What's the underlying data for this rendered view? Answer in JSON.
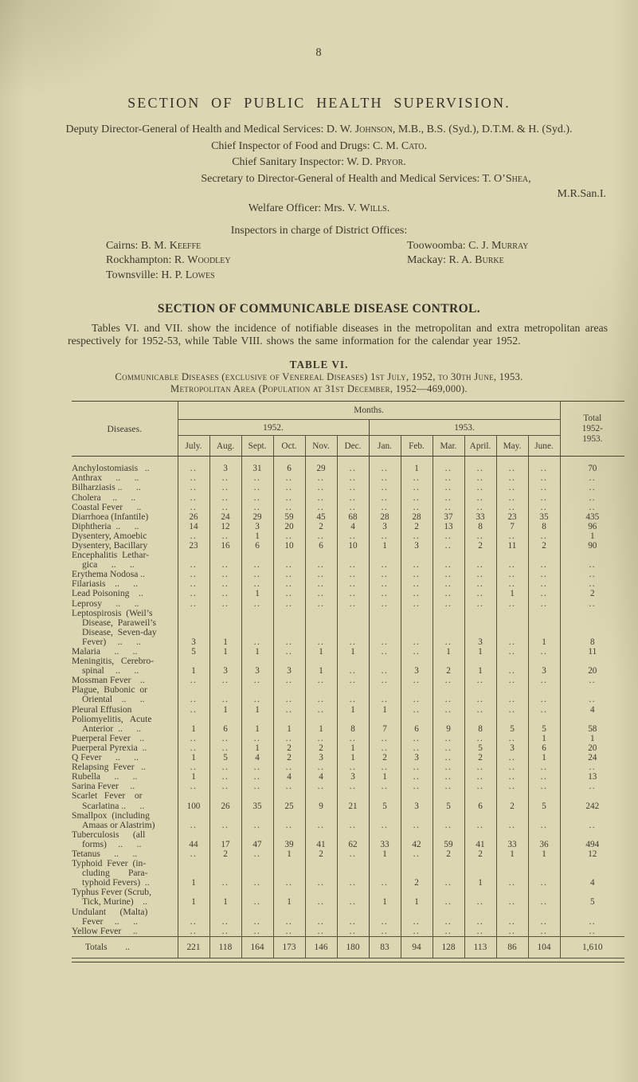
{
  "page": {
    "number": "8"
  },
  "public_health": {
    "title": "SECTION OF PUBLIC HEALTH SUPERVISION."
  },
  "officers": [
    {
      "pre": "Deputy Director-General of Health and Medical Services: D. W. ",
      "name": "Johnson",
      "post": ", M.B., B.S. (Syd.), D.T.M. & H. (Syd.)."
    },
    {
      "pre": "Chief Inspector of Food and Drugs: C. M. ",
      "name": "Cato",
      "post": "."
    },
    {
      "pre": "Chief Sanitary Inspector: W. D. ",
      "name": "Pryor",
      "post": "."
    },
    {
      "pre": "Secretary to Director-General of Health and Medical Services: T. O’",
      "name": "Shea",
      "post": ",",
      "cred": "M.R.San.I."
    },
    {
      "pre": "Welfare Officer: Mrs. V. ",
      "name": "Wills",
      "post": "."
    }
  ],
  "inspectors": {
    "heading": "Inspectors in charge of District Offices:",
    "left": [
      {
        "pre": "Cairns: B. M. ",
        "name": "Keeffe"
      },
      {
        "pre": "Rockhampton: R. ",
        "name": "Woodley"
      },
      {
        "pre": "Townsville: H. P. ",
        "name": "Lowes"
      }
    ],
    "right": [
      {
        "pre": "Toowoomba: C. J. ",
        "name": "Murray"
      },
      {
        "pre": "Mackay: R. A. ",
        "name": "Burke"
      }
    ]
  },
  "communicable": {
    "title": "SECTION OF COMMUNICABLE DISEASE CONTROL.",
    "paragraph": "Tables VI. and VII. show the incidence of notifiable diseases in the metropolitan and extra metropolitan areas respectively for 1952-53, while Table VIII. shows the same information for the calendar year 1952."
  },
  "table": {
    "heading": "TABLE VI.",
    "caption1": "Communicable Diseases (exclusive of Venereal Diseases) 1st July, 1952, to 30th June, 1953.",
    "caption2": "Metropolitan Area (Population at 31st December, 1952—469,000).",
    "diseases_label": "Diseases.",
    "months_label": "Months.",
    "year1": "1952.",
    "year2": "1953.",
    "total_label_lines": [
      "Total",
      "1952-",
      "1953."
    ],
    "months": [
      "July.",
      "Aug.",
      "Sept.",
      "Oct.",
      "Nov.",
      "Dec.",
      "Jan.",
      "Feb.",
      "Mar.",
      "April.",
      "May.",
      "June."
    ],
    "rows": [
      {
        "lines": [
          "Anchylostomiasis   .."
        ],
        "v": [
          "..",
          "3",
          "31",
          "6",
          "29",
          "..",
          "..",
          "1",
          "..",
          "..",
          "..",
          ".."
        ],
        "t": "70"
      },
      {
        "lines": [
          "Anthrax      ..      .."
        ],
        "v": [
          "..",
          "..",
          "..",
          "..",
          "..",
          "..",
          "..",
          "..",
          "..",
          "..",
          "..",
          ".."
        ],
        "t": ".."
      },
      {
        "lines": [
          "Bilharziasis ..      .."
        ],
        "v": [
          "..",
          "..",
          "..",
          "..",
          "..",
          "..",
          "..",
          "..",
          "..",
          "..",
          "..",
          ".."
        ],
        "t": ".."
      },
      {
        "lines": [
          "Cholera     ..      .."
        ],
        "v": [
          "..",
          "..",
          "..",
          "..",
          "..",
          "..",
          "..",
          "..",
          "..",
          "..",
          "..",
          ".."
        ],
        "t": ".."
      },
      {
        "lines": [
          "Coastal Fever      .."
        ],
        "v": [
          "..",
          "..",
          "..",
          "..",
          "..",
          "..",
          "..",
          "..",
          "..",
          "..",
          "..",
          ".."
        ],
        "t": ".."
      },
      {
        "lines": [
          "Diarrhoea (Infantile)"
        ],
        "v": [
          "26",
          "24",
          "29",
          "59",
          "45",
          "68",
          "28",
          "28",
          "37",
          "33",
          "23",
          "35"
        ],
        "t": "435"
      },
      {
        "lines": [
          "Diphtheria  ..      .."
        ],
        "v": [
          "14",
          "12",
          "3",
          "20",
          "2",
          "4",
          "3",
          "2",
          "13",
          "8",
          "7",
          "8"
        ],
        "t": "96"
      },
      {
        "lines": [
          "Dysentery, Amoebic"
        ],
        "v": [
          "..",
          "..",
          "1",
          "..",
          "..",
          "..",
          "..",
          "..",
          "..",
          "..",
          "..",
          ".."
        ],
        "t": "1"
      },
      {
        "lines": [
          "Dysentery, Bacillary"
        ],
        "v": [
          "23",
          "16",
          "6",
          "10",
          "6",
          "10",
          "1",
          "3",
          "..",
          "2",
          "11",
          "2"
        ],
        "t": "90"
      },
      {
        "lines": [
          "Encephalitis  Lethar-",
          "gica      ..      .."
        ],
        "v": [
          "..",
          "..",
          "..",
          "..",
          "..",
          "..",
          "..",
          "..",
          "..",
          "..",
          "..",
          ".."
        ],
        "t": ".."
      },
      {
        "lines": [
          "Erythema Nodosa .."
        ],
        "v": [
          "..",
          "..",
          "..",
          "..",
          "..",
          "..",
          "..",
          "..",
          "..",
          "..",
          "..",
          ".."
        ],
        "t": ".."
      },
      {
        "lines": [
          "Filariasis    ..      .."
        ],
        "v": [
          "..",
          "..",
          "..",
          "..",
          "..",
          "..",
          "..",
          "..",
          "..",
          "..",
          "..",
          ".."
        ],
        "t": ".."
      },
      {
        "lines": [
          "Lead Poisoning    .."
        ],
        "v": [
          "..",
          "..",
          "1",
          "..",
          "..",
          "..",
          "..",
          "..",
          "..",
          "..",
          "1",
          ".."
        ],
        "t": "2"
      },
      {
        "lines": [
          "Leprosy      ..      .."
        ],
        "v": [
          "..",
          "..",
          "..",
          "..",
          "..",
          "..",
          "..",
          "..",
          "..",
          "..",
          "..",
          ".."
        ],
        "t": ".."
      },
      {
        "lines": [
          "Leptospirosis  (Weil’s",
          "Disease,  Paraweil’s",
          "Disease,  Seven-day",
          "Fever)     ..      .."
        ],
        "v": [
          "3",
          "1",
          "..",
          "..",
          "..",
          "..",
          "..",
          "..",
          "..",
          "3",
          "..",
          "1"
        ],
        "t": "8"
      },
      {
        "lines": [
          "Malaria      ..      .."
        ],
        "v": [
          "5",
          "1",
          "1",
          "..",
          "1",
          "1",
          "..",
          "..",
          "1",
          "1",
          "..",
          ".."
        ],
        "t": "11"
      },
      {
        "lines": [
          "Meningitis,   Cerebro-",
          "spinal     ..      .."
        ],
        "v": [
          "1",
          "3",
          "3",
          "3",
          "1",
          "..",
          "..",
          "3",
          "2",
          "1",
          "..",
          "3"
        ],
        "t": "20"
      },
      {
        "lines": [
          "Mossman Fever    .."
        ],
        "v": [
          "..",
          "..",
          "..",
          "..",
          "..",
          "..",
          "..",
          "..",
          "..",
          "..",
          "..",
          ".."
        ],
        "t": ".."
      },
      {
        "lines": [
          "Plague,  Bubonic  or",
          "Oriental    ..      .."
        ],
        "v": [
          "..",
          "..",
          "..",
          "..",
          "..",
          "..",
          "..",
          "..",
          "..",
          "..",
          "..",
          ".."
        ],
        "t": ".."
      },
      {
        "lines": [
          "Pleural Effusion"
        ],
        "v": [
          "..",
          "1",
          "1",
          "..",
          "..",
          "1",
          "1",
          "..",
          "..",
          "..",
          "..",
          ".."
        ],
        "t": "4"
      },
      {
        "lines": [
          "Poliomyelitis,   Acute",
          "Anterior  ..      .."
        ],
        "v": [
          "1",
          "6",
          "1",
          "1",
          "1",
          "8",
          "7",
          "6",
          "9",
          "8",
          "5",
          "5"
        ],
        "t": "58"
      },
      {
        "lines": [
          "Puerperal Fever    .."
        ],
        "v": [
          "..",
          "..",
          "..",
          "..",
          "..",
          "..",
          "..",
          "..",
          "..",
          "..",
          "..",
          "1"
        ],
        "t": "1"
      },
      {
        "lines": [
          "Puerperal Pyrexia  .."
        ],
        "v": [
          "..",
          "..",
          "1",
          "2",
          "2",
          "1",
          "..",
          "..",
          "..",
          "5",
          "3",
          "6"
        ],
        "t": "20"
      },
      {
        "lines": [
          "Q Fever      ..      .."
        ],
        "v": [
          "1",
          "5",
          "4",
          "2",
          "3",
          "1",
          "2",
          "3",
          "..",
          "2",
          "..",
          "1"
        ],
        "t": "24"
      },
      {
        "lines": [
          "Relapsing  Fever   .."
        ],
        "v": [
          "..",
          "..",
          "..",
          "..",
          "..",
          "..",
          "..",
          "..",
          "..",
          "..",
          "..",
          ".."
        ],
        "t": ".."
      },
      {
        "lines": [
          "Rubella      ..      .."
        ],
        "v": [
          "1",
          "..",
          "..",
          "4",
          "4",
          "3",
          "1",
          "..",
          "..",
          "..",
          "..",
          ".."
        ],
        "t": "13"
      },
      {
        "lines": [
          "Sarina Fever     .."
        ],
        "v": [
          "..",
          "..",
          "..",
          "..",
          "..",
          "..",
          "..",
          "..",
          "..",
          "..",
          "..",
          ".."
        ],
        "t": ".."
      },
      {
        "lines": [
          "Scarlet   Fever    or",
          "Scarlatina ..      .."
        ],
        "v": [
          "100",
          "26",
          "35",
          "25",
          "9",
          "21",
          "5",
          "3",
          "5",
          "6",
          "2",
          "5"
        ],
        "t": "242"
      },
      {
        "lines": [
          "Smallpox  (including",
          "Amaas or Alastrim)"
        ],
        "v": [
          "..",
          "..",
          "..",
          "..",
          "..",
          "..",
          "..",
          "..",
          "..",
          "..",
          "..",
          ".."
        ],
        "t": ".."
      },
      {
        "lines": [
          "Tuberculosis      (all",
          "forms)     ..      .."
        ],
        "v": [
          "44",
          "17",
          "47",
          "39",
          "41",
          "62",
          "33",
          "42",
          "59",
          "41",
          "33",
          "36"
        ],
        "t": "494"
      },
      {
        "lines": [
          "Tetanus      ..      .."
        ],
        "v": [
          "..",
          "2",
          "..",
          "1",
          "2",
          "..",
          "1",
          "..",
          "2",
          "2",
          "1",
          "1"
        ],
        "t": "12"
      },
      {
        "lines": [
          "Typhoid  Fever  (in-",
          "cluding        Para-",
          "typhoid Fevers)  .."
        ],
        "v": [
          "1",
          "..",
          "..",
          "..",
          "..",
          "..",
          "..",
          "2",
          "..",
          "1",
          "..",
          ".."
        ],
        "t": "4"
      },
      {
        "lines": [
          "Typhus Fever (Scrub,",
          "Tick, Murine)    .."
        ],
        "v": [
          "1",
          "1",
          "..",
          "1",
          "..",
          "..",
          "1",
          "1",
          "..",
          "..",
          "..",
          ".."
        ],
        "t": "5"
      },
      {
        "lines": [
          "Undulant      (Malta)",
          "Fever     ..      .."
        ],
        "v": [
          "..",
          "..",
          "..",
          "..",
          "..",
          "..",
          "..",
          "..",
          "..",
          "..",
          "..",
          ".."
        ],
        "t": ".."
      },
      {
        "lines": [
          "Yellow Fever     .."
        ],
        "v": [
          "..",
          "..",
          "..",
          "..",
          "..",
          "..",
          "..",
          "..",
          "..",
          "..",
          "..",
          ".."
        ],
        "t": ".."
      }
    ],
    "totals": {
      "label": "      Totals        ..",
      "v": [
        "221",
        "118",
        "164",
        "173",
        "146",
        "180",
        "83",
        "94",
        "128",
        "113",
        "86",
        "104"
      ],
      "t": "1,610"
    }
  }
}
